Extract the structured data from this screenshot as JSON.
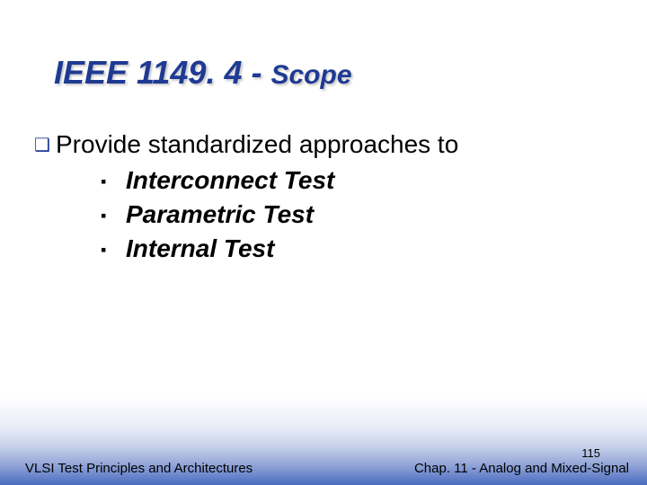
{
  "title": {
    "main": "IEEE 1149. 4",
    "separator": " - ",
    "sub": "Scope",
    "color": "#1f3a93",
    "main_fontsize": 36,
    "sub_fontsize": 30,
    "italic": true,
    "bold": true
  },
  "lead": {
    "bullet_glyph": "❑",
    "bullet_color": "#1f3a93",
    "text": "Provide standardized approaches to",
    "fontsize": 28
  },
  "sub_items": [
    {
      "bullet_glyph": "▪",
      "text": "Interconnect Test"
    },
    {
      "bullet_glyph": "▪",
      "text": "Parametric Test"
    },
    {
      "bullet_glyph": "▪",
      "text": "Internal Test"
    }
  ],
  "sub_style": {
    "fontsize": 28,
    "bold": true,
    "italic": true,
    "color": "#000000"
  },
  "footer": {
    "left": "VLSI Test Principles and Architectures",
    "right": "Chap. 11 - Analog and Mixed-Signal",
    "page_number": "115",
    "fontsize": 15
  },
  "background": {
    "top_color": "#ffffff",
    "gradient_mid": "#c8d2ea",
    "gradient_bottom": "#4a6bc0"
  }
}
